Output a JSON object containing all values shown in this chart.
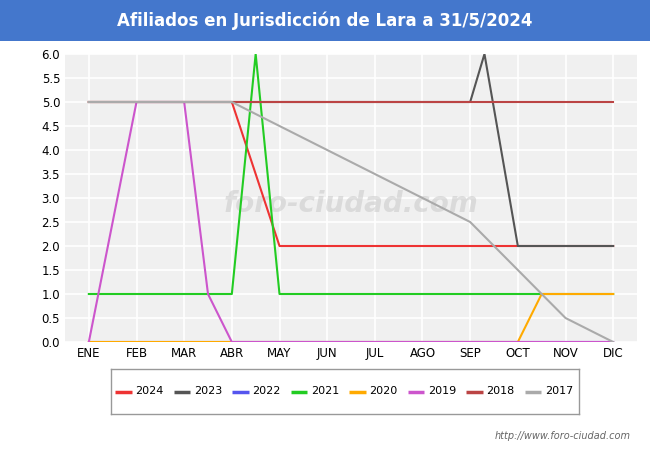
{
  "title": "Afiliados en Jurisdicción de Lara a 31/5/2024",
  "title_bg_color": "#4477cc",
  "title_text_color": "white",
  "ylim": [
    0.0,
    6.0
  ],
  "yticks": [
    0.0,
    0.5,
    1.0,
    1.5,
    2.0,
    2.5,
    3.0,
    3.5,
    4.0,
    4.5,
    5.0,
    5.5,
    6.0
  ],
  "months": [
    "ENE",
    "FEB",
    "MAR",
    "ABR",
    "MAY",
    "JUN",
    "JUL",
    "AGO",
    "SEP",
    "OCT",
    "NOV",
    "DIC"
  ],
  "url": "http://www.foro-ciudad.com",
  "watermark": "foro-ciudad.com",
  "plot_bg_color": "#f0f0f0",
  "grid_color": "#ffffff",
  "series": {
    "2024": {
      "color": "#ee3333",
      "x": [
        0,
        1,
        2,
        3,
        4,
        5,
        6,
        7,
        8,
        9,
        10,
        11
      ],
      "y": [
        5,
        5,
        5,
        5,
        2,
        2,
        2,
        2,
        2,
        2,
        2,
        2
      ]
    },
    "2023": {
      "color": "#555555",
      "x": [
        0,
        1,
        2,
        3,
        4,
        5,
        6,
        7,
        8,
        8.3,
        9,
        10,
        11
      ],
      "y": [
        5,
        5,
        5,
        5,
        5,
        5,
        5,
        5,
        5,
        6.0,
        2,
        2,
        2
      ]
    },
    "2022": {
      "color": "#5555ee",
      "x": [
        0,
        11
      ],
      "y": [
        0,
        0
      ]
    },
    "2021": {
      "color": "#22cc22",
      "x": [
        0,
        1,
        2,
        3,
        3.5,
        4,
        5,
        6,
        7,
        8,
        9,
        10,
        11
      ],
      "y": [
        1,
        1,
        1,
        1,
        6.0,
        1,
        1,
        1,
        1,
        1,
        1,
        1,
        1
      ]
    },
    "2020": {
      "color": "#ffaa00",
      "x": [
        0,
        1,
        2,
        3,
        4,
        5,
        6,
        7,
        8,
        9,
        9.5,
        10,
        11
      ],
      "y": [
        0,
        0,
        0,
        0,
        0,
        0,
        0,
        0,
        0,
        0,
        1.0,
        1,
        1
      ]
    },
    "2019": {
      "color": "#cc55cc",
      "x": [
        0,
        1,
        2,
        2.5,
        3,
        4,
        5,
        6,
        7,
        8,
        9,
        10,
        11
      ],
      "y": [
        0,
        5,
        5,
        1.0,
        0,
        0,
        0,
        0,
        0,
        0,
        0,
        0,
        0
      ]
    },
    "2018": {
      "color": "#bb4444",
      "x": [
        0,
        11
      ],
      "y": [
        5,
        5
      ]
    },
    "2017": {
      "color": "#aaaaaa",
      "x": [
        0,
        1,
        2,
        3,
        4,
        5,
        6,
        7,
        8,
        9,
        10,
        11
      ],
      "y": [
        5,
        5,
        5,
        5,
        4.5,
        4.0,
        3.5,
        3.0,
        2.5,
        1.5,
        0.5,
        0.0
      ]
    }
  },
  "legend_order": [
    "2024",
    "2023",
    "2022",
    "2021",
    "2020",
    "2019",
    "2018",
    "2017"
  ]
}
